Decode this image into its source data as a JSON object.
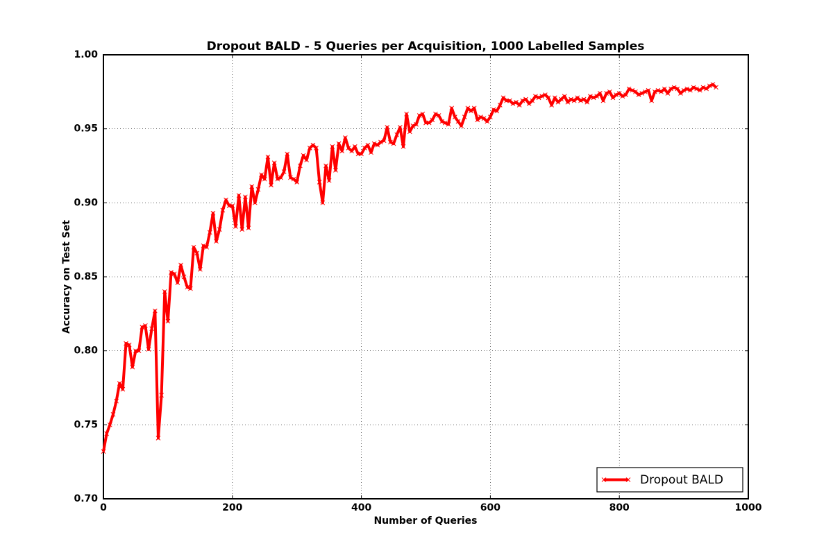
{
  "chart_data": {
    "type": "line",
    "title": "Dropout BALD - 5 Queries per Acquisition, 1000 Labelled Samples",
    "x_label": "Number of Queries",
    "y_label": "Accuracy on Test Set",
    "xlim": [
      0,
      1000
    ],
    "xticks": [
      0,
      200,
      400,
      600,
      800,
      1000
    ],
    "ylim": [
      0.7,
      1.0
    ],
    "yticks": [
      {
        "value": 0.7,
        "label": "0.70"
      },
      {
        "value": 0.75,
        "label": "0.75"
      },
      {
        "value": 0.8,
        "label": "0.80"
      },
      {
        "value": 0.85,
        "label": "0.85"
      },
      {
        "value": 0.9,
        "label": "0.90"
      },
      {
        "value": 0.95,
        "label": "0.95"
      },
      {
        "value": 1.0,
        "label": "1.00"
      }
    ],
    "grid": true,
    "legend": "lower right",
    "x": [
      0,
      5,
      10,
      15,
      20,
      25,
      30,
      35,
      40,
      45,
      50,
      55,
      60,
      65,
      70,
      75,
      80,
      85,
      90,
      95,
      100,
      105,
      110,
      115,
      120,
      125,
      130,
      135,
      140,
      145,
      150,
      155,
      160,
      165,
      170,
      175,
      180,
      185,
      190,
      195,
      200,
      205,
      210,
      215,
      220,
      225,
      230,
      235,
      240,
      245,
      250,
      255,
      260,
      265,
      270,
      275,
      280,
      285,
      290,
      295,
      300,
      305,
      310,
      315,
      320,
      325,
      330,
      335,
      340,
      345,
      350,
      355,
      360,
      365,
      370,
      375,
      380,
      385,
      390,
      395,
      400,
      405,
      410,
      415,
      420,
      425,
      430,
      435,
      440,
      445,
      450,
      455,
      460,
      465,
      470,
      475,
      480,
      485,
      490,
      495,
      500,
      505,
      510,
      515,
      520,
      525,
      530,
      535,
      540,
      545,
      550,
      555,
      560,
      565,
      570,
      575,
      580,
      585,
      590,
      595,
      600,
      605,
      610,
      615,
      620,
      625,
      630,
      635,
      640,
      645,
      650,
      655,
      660,
      665,
      670,
      675,
      680,
      685,
      690,
      695,
      700,
      705,
      710,
      715,
      720,
      725,
      730,
      735,
      740,
      745,
      750,
      755,
      760,
      765,
      770,
      775,
      780,
      785,
      790,
      795,
      800,
      805,
      810,
      815,
      820,
      825,
      830,
      835,
      840,
      845,
      850,
      855,
      860,
      865,
      870,
      875,
      880,
      885,
      890,
      895,
      900,
      905,
      910,
      915,
      920,
      925,
      930,
      935,
      940,
      945,
      950
    ],
    "series": [
      {
        "name": "Dropout BALD",
        "color": "#ff0000",
        "values": [
          0.732,
          0.744,
          0.75,
          0.757,
          0.766,
          0.778,
          0.774,
          0.805,
          0.804,
          0.789,
          0.8,
          0.8,
          0.816,
          0.817,
          0.801,
          0.815,
          0.827,
          0.741,
          0.77,
          0.84,
          0.82,
          0.853,
          0.852,
          0.846,
          0.858,
          0.85,
          0.843,
          0.842,
          0.87,
          0.866,
          0.855,
          0.871,
          0.87,
          0.88,
          0.893,
          0.874,
          0.882,
          0.895,
          0.902,
          0.898,
          0.898,
          0.884,
          0.905,
          0.882,
          0.904,
          0.883,
          0.911,
          0.9,
          0.909,
          0.919,
          0.916,
          0.931,
          0.912,
          0.927,
          0.916,
          0.917,
          0.921,
          0.933,
          0.917,
          0.916,
          0.914,
          0.925,
          0.932,
          0.929,
          0.937,
          0.939,
          0.937,
          0.914,
          0.9,
          0.925,
          0.915,
          0.938,
          0.922,
          0.94,
          0.935,
          0.944,
          0.937,
          0.935,
          0.938,
          0.933,
          0.933,
          0.937,
          0.939,
          0.934,
          0.94,
          0.939,
          0.941,
          0.942,
          0.951,
          0.941,
          0.94,
          0.946,
          0.951,
          0.938,
          0.96,
          0.948,
          0.952,
          0.953,
          0.959,
          0.96,
          0.954,
          0.954,
          0.956,
          0.96,
          0.959,
          0.955,
          0.954,
          0.953,
          0.964,
          0.958,
          0.955,
          0.952,
          0.958,
          0.964,
          0.962,
          0.964,
          0.956,
          0.958,
          0.957,
          0.955,
          0.958,
          0.963,
          0.962,
          0.966,
          0.971,
          0.969,
          0.969,
          0.967,
          0.968,
          0.966,
          0.969,
          0.97,
          0.967,
          0.969,
          0.972,
          0.971,
          0.972,
          0.973,
          0.971,
          0.966,
          0.971,
          0.968,
          0.97,
          0.972,
          0.968,
          0.97,
          0.969,
          0.971,
          0.969,
          0.97,
          0.968,
          0.972,
          0.971,
          0.972,
          0.974,
          0.969,
          0.974,
          0.975,
          0.971,
          0.973,
          0.974,
          0.972,
          0.973,
          0.977,
          0.976,
          0.975,
          0.973,
          0.974,
          0.975,
          0.976,
          0.969,
          0.975,
          0.976,
          0.975,
          0.977,
          0.974,
          0.977,
          0.978,
          0.977,
          0.974,
          0.976,
          0.977,
          0.976,
          0.978,
          0.977,
          0.976,
          0.978,
          0.977,
          0.979,
          0.98,
          0.978
        ]
      }
    ]
  }
}
